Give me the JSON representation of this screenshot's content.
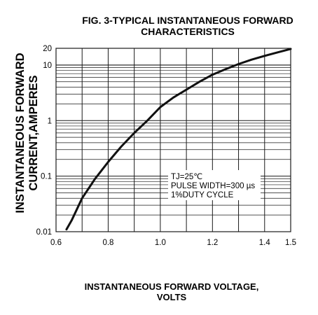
{
  "chart_data": {
    "type": "line",
    "title_lines": [
      "FIG. 3-TYPICAL INSTANTANEOUS FORWARD",
      "CHARACTERISTICS"
    ],
    "ylabel_lines": [
      "INSTANTANEOUS FORWARD",
      "CURRENT,AMPERES"
    ],
    "xlabel_lines": [
      "INSTANTANEOUS FORWARD VOLTAGE,",
      "VOLTS"
    ],
    "x_scale": "linear",
    "y_scale": "log",
    "xlim": [
      0.6,
      1.5
    ],
    "ylim": [
      0.01,
      20
    ],
    "x_ticks": [
      0.6,
      0.8,
      1.0,
      1.2,
      1.4,
      1.5
    ],
    "x_tick_labels": [
      "0.6",
      "0.8",
      "1.0",
      "1.2",
      "1.4",
      "1.5"
    ],
    "x_gridlines": [
      0.6,
      0.7,
      0.8,
      0.9,
      1.0,
      1.1,
      1.2,
      1.3,
      1.4,
      1.5
    ],
    "y_ticks": [
      0.01,
      0.1,
      1,
      10,
      20
    ],
    "y_tick_labels": [
      "0.01",
      "0.1",
      "1",
      "10",
      "20"
    ],
    "grid": true,
    "annotation_lines": [
      "TJ=25℃",
      "PULSE WIDTH=300 µs",
      "1%DUTY CYCLE"
    ],
    "series": [
      {
        "x": [
          0.64,
          0.66,
          0.7,
          0.75,
          0.8,
          0.85,
          0.9,
          0.95,
          1.0,
          1.05,
          1.1,
          1.15,
          1.2,
          1.25,
          1.3,
          1.35,
          1.4,
          1.45,
          1.5
        ],
        "y": [
          0.011,
          0.016,
          0.04,
          0.09,
          0.18,
          0.34,
          0.6,
          1.0,
          1.75,
          2.6,
          3.6,
          5.0,
          6.7,
          8.4,
          10.4,
          12.5,
          14.6,
          16.9,
          19.5
        ]
      }
    ]
  }
}
